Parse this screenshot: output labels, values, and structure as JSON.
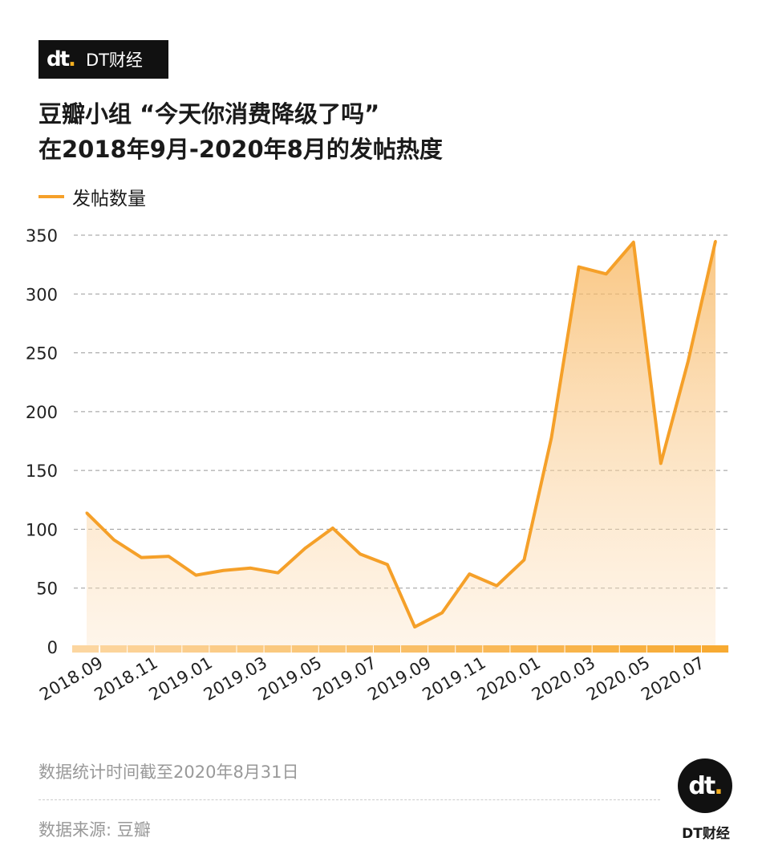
{
  "brand": {
    "mark": "dt",
    "name": "DT财经"
  },
  "title_line1": "豆瓣小组 “今天你消费降级了吗”",
  "title_line2": "在2018年9月-2020年8月的发帖热度",
  "footer": {
    "note": "数据统计时间截至2020年8月31日",
    "source": "数据来源: 豆瓣"
  },
  "chart_data": {
    "type": "area",
    "title": "",
    "xlabel": "",
    "ylabel": "",
    "ylim": [
      0,
      350
    ],
    "yticks": [
      0,
      50,
      100,
      150,
      200,
      250,
      300,
      350
    ],
    "grid": true,
    "legend_position": "top-left",
    "x": [
      "2018.09",
      "2018.10",
      "2018.11",
      "2018.12",
      "2019.01",
      "2019.02",
      "2019.03",
      "2019.04",
      "2019.05",
      "2019.06",
      "2019.07",
      "2019.08",
      "2019.09",
      "2019.10",
      "2019.11",
      "2019.12",
      "2020.01",
      "2020.02",
      "2020.03",
      "2020.04",
      "2020.05",
      "2020.06",
      "2020.07",
      "2020.08"
    ],
    "xtick_labels": [
      "2018.09",
      "2018.11",
      "2019.01",
      "2019.03",
      "2019.05",
      "2019.07",
      "2019.09",
      "2019.11",
      "2020.01",
      "2020.03",
      "2020.05",
      "2020.07"
    ],
    "series": [
      {
        "name": "发帖数量",
        "color": "#f5a029",
        "values": [
          114,
          91,
          76,
          77,
          61,
          65,
          67,
          63,
          84,
          101,
          79,
          70,
          17,
          29,
          62,
          52,
          74,
          178,
          323,
          317,
          344,
          156,
          243,
          345
        ]
      }
    ]
  }
}
